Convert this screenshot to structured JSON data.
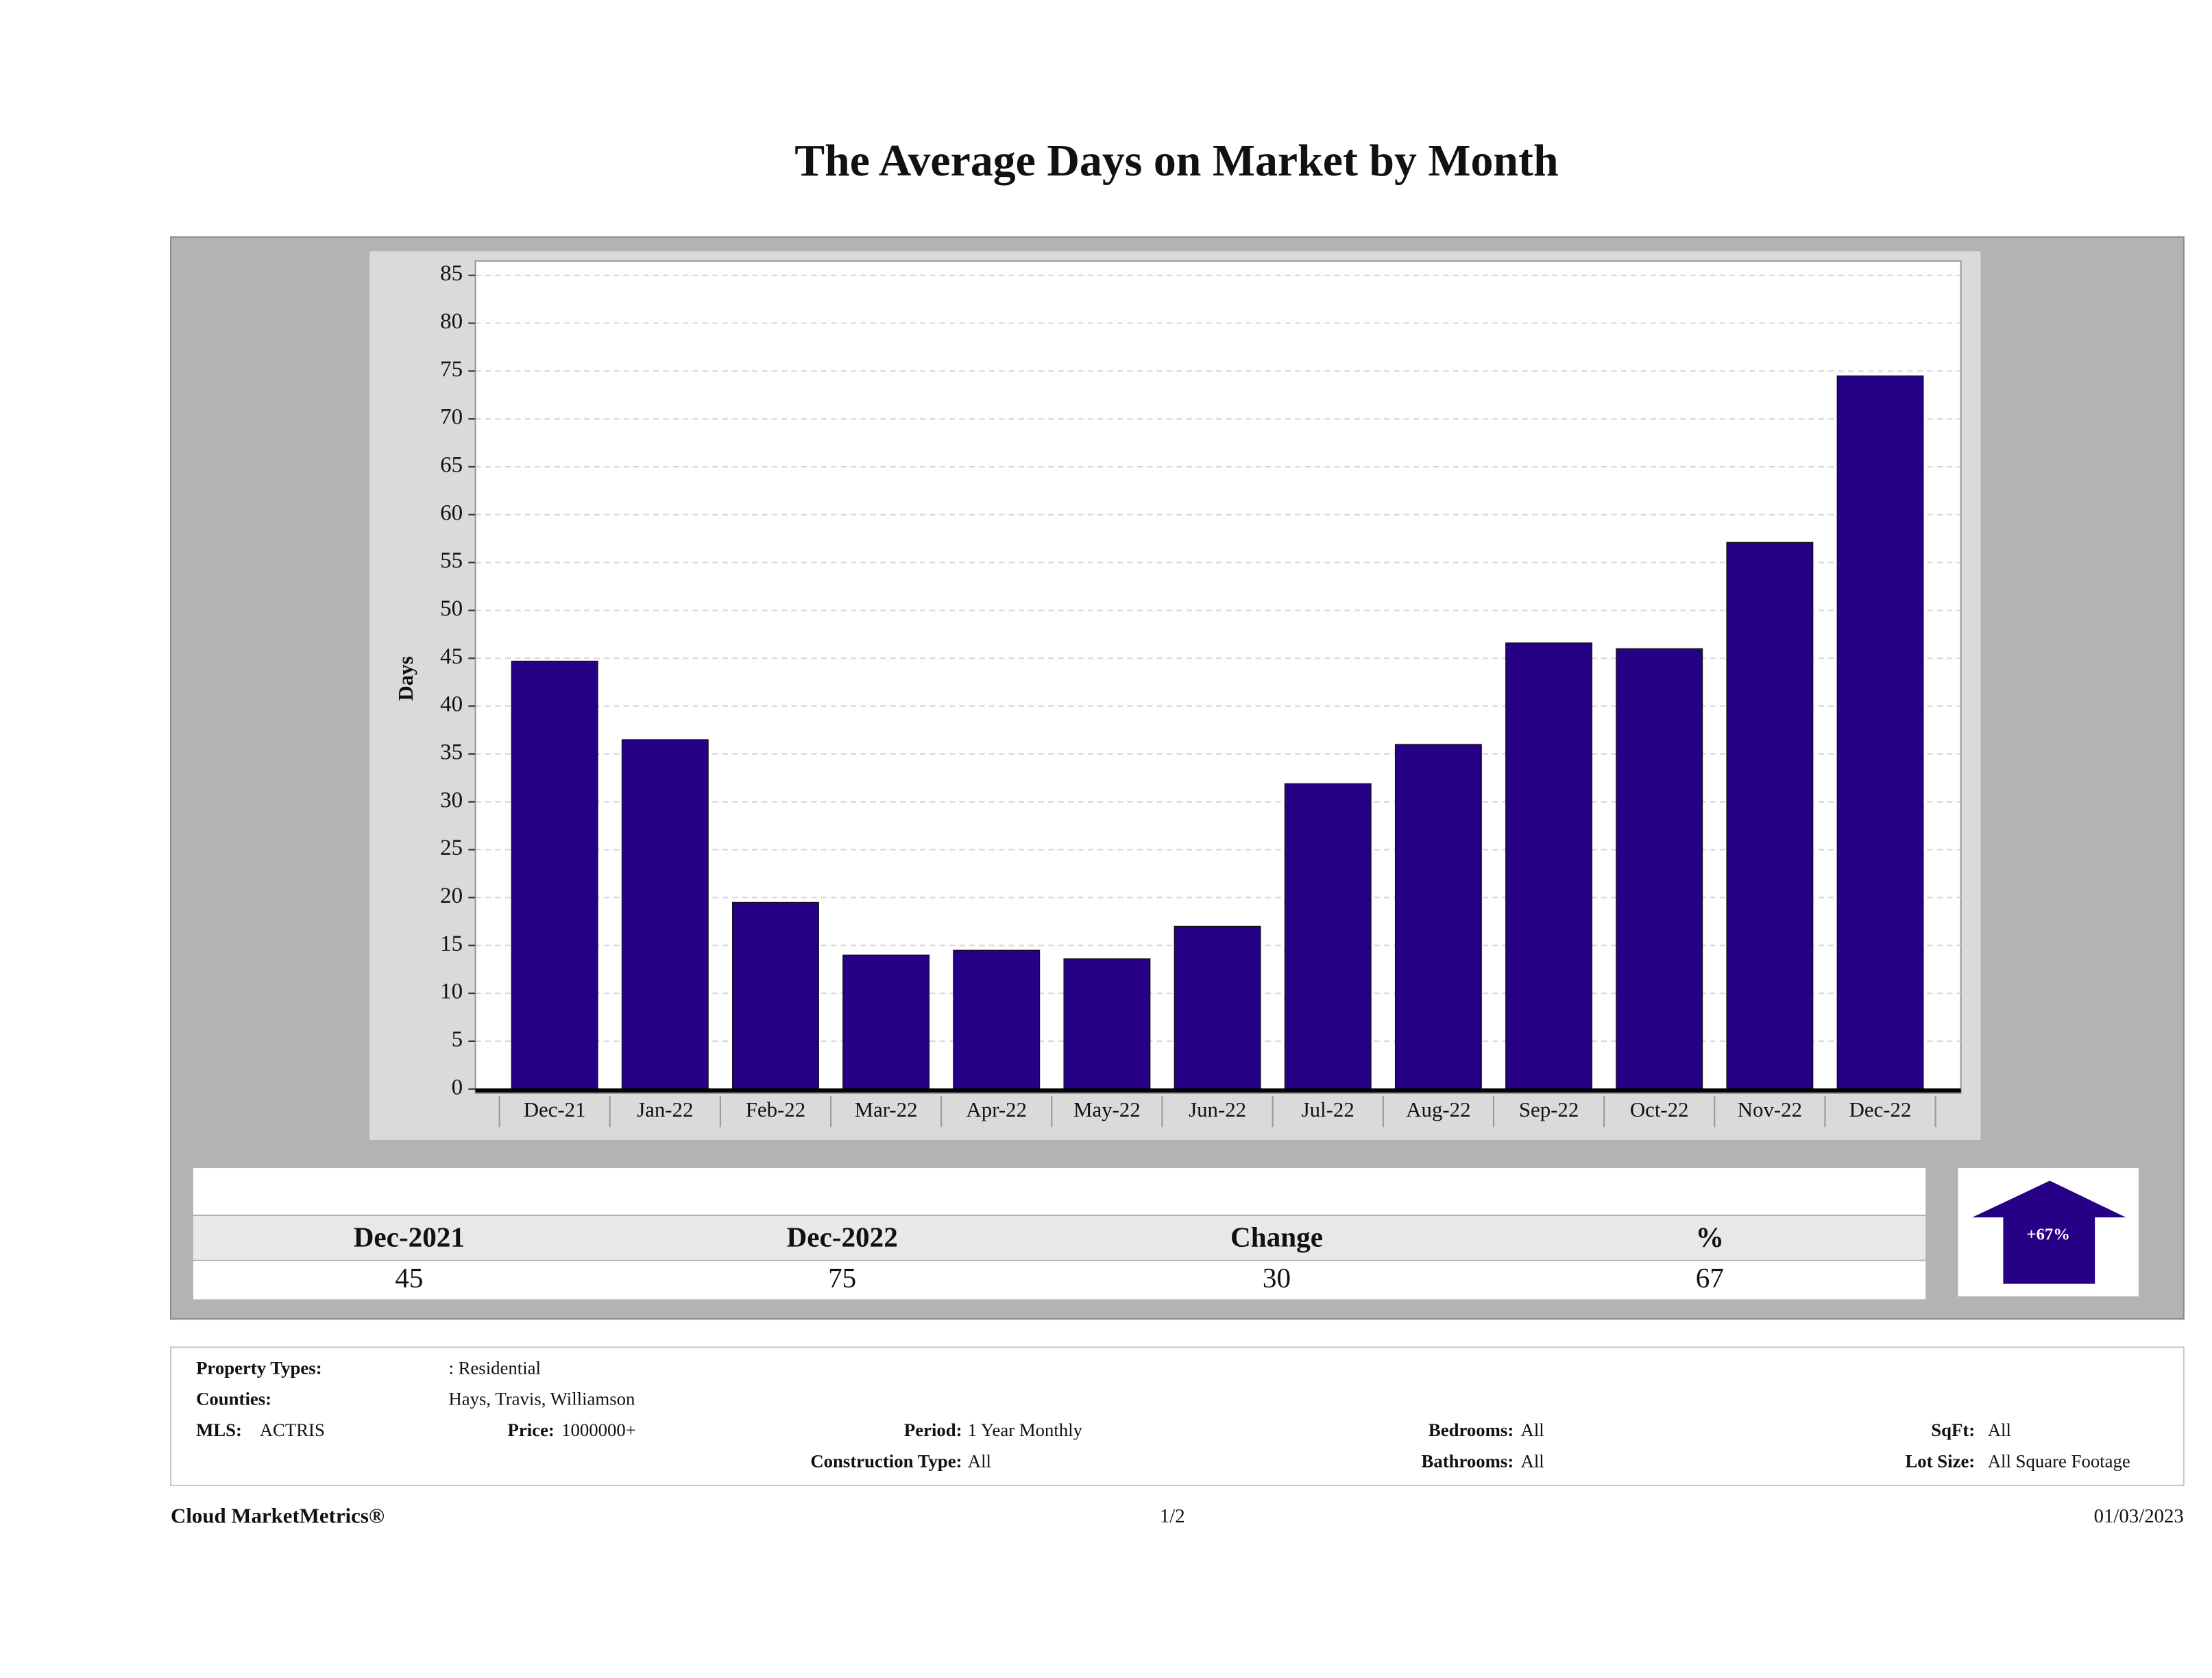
{
  "chart_data": {
    "type": "bar",
    "title": "The Average Days on Market by Month",
    "y_label": "Days",
    "categories": [
      "Dec-21",
      "Jan-22",
      "Feb-22",
      "Mar-22",
      "Apr-22",
      "May-22",
      "Jun-22",
      "Jul-22",
      "Aug-22",
      "Sep-22",
      "Oct-22",
      "Nov-22",
      "Dec-22"
    ],
    "values": [
      44.7,
      36.5,
      19.5,
      14.0,
      14.5,
      13.6,
      17.0,
      31.9,
      36.0,
      46.6,
      46.0,
      57.1,
      74.5
    ],
    "color": "#260085",
    "ylim": [
      0,
      86.5
    ],
    "yticks": [
      0,
      5,
      10,
      15,
      20,
      25,
      30,
      35,
      40,
      45,
      50,
      55,
      60,
      65,
      70,
      75,
      80,
      85
    ],
    "grid": true
  },
  "summary": {
    "headers": [
      "Dec-2021",
      "Dec-2022",
      "Change",
      "%"
    ],
    "values": [
      "45",
      "75",
      "30",
      "67"
    ],
    "badge": "+67%"
  },
  "filters": {
    "property_types": {
      "label": "Property Types:",
      "value": ": Residential"
    },
    "counties": {
      "label": "Counties:",
      "value": "Hays, Travis, Williamson"
    },
    "mls": {
      "label": "MLS:",
      "value": "ACTRIS"
    },
    "price": {
      "label": "Price:",
      "value": "1000000+"
    },
    "period": {
      "label": "Period:",
      "value": "1 Year Monthly"
    },
    "bedrooms": {
      "label": "Bedrooms:",
      "value": "All"
    },
    "sqft": {
      "label": "SqFt:",
      "value": "All"
    },
    "construction_type": {
      "label": "Construction Type:",
      "value": "All"
    },
    "bathrooms": {
      "label": "Bathrooms:",
      "value": "All"
    },
    "lot_size": {
      "label": "Lot Size:",
      "value": "All Square Footage"
    }
  },
  "footer": {
    "brand": "Cloud MarketMetrics®",
    "page": "1/2",
    "date": "01/03/2023"
  }
}
